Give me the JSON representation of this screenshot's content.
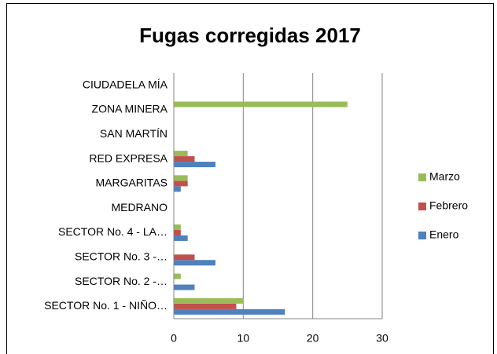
{
  "chart_data": {
    "type": "barh",
    "title": "Fugas corregidas 2017",
    "categories": [
      "SECTOR No. 1 - NIÑO…",
      "SECTOR No. 2 -…",
      "SECTOR No. 3 -…",
      "SECTOR No. 4 - LA…",
      "MEDRANO",
      "MARGARITAS",
      "RED EXPRESA",
      "SAN MARTÍN",
      "ZONA MINERA",
      "CIUDADELA MÍA"
    ],
    "series": [
      {
        "name": "Enero",
        "color": "#4f81bd",
        "values": [
          16,
          3,
          6,
          2,
          0,
          1,
          6,
          0,
          0,
          0
        ]
      },
      {
        "name": "Febrero",
        "color": "#c0504d",
        "values": [
          9,
          0,
          3,
          1,
          0,
          2,
          3,
          0,
          0,
          0
        ]
      },
      {
        "name": "Marzo",
        "color": "#9bbb59",
        "values": [
          10,
          1,
          0,
          1,
          0,
          2,
          2,
          0,
          25,
          0
        ]
      }
    ],
    "xlim": [
      0,
      30
    ],
    "xticks": [
      0,
      10,
      20,
      30
    ],
    "grid": true,
    "legend": "right"
  }
}
